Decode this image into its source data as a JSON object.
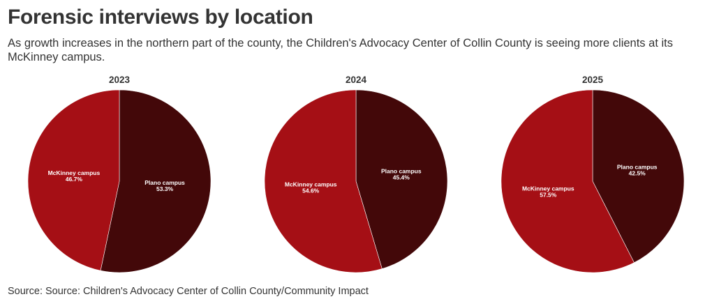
{
  "header": {
    "title": "Forensic interviews by location",
    "subtitle": "As growth increases in the northern part of the county, the Children's Advocacy Center of Collin County is seeing more clients at its McKinney campus."
  },
  "footer": {
    "source": "Source: Source: Children's Advocacy Center of Collin County/Community Impact"
  },
  "colors": {
    "plano": "#430809",
    "mckinney": "#a50f15"
  },
  "chart_data": [
    {
      "type": "pie",
      "title": "2023",
      "slices": [
        {
          "label": "Plano campus",
          "value": 53.3,
          "display": "53.3%",
          "color": "#430809"
        },
        {
          "label": "McKinney campus",
          "value": 46.7,
          "display": "46.7%",
          "color": "#a50f15"
        }
      ]
    },
    {
      "type": "pie",
      "title": "2024",
      "slices": [
        {
          "label": "Plano campus",
          "value": 45.4,
          "display": "45.4%",
          "color": "#430809"
        },
        {
          "label": "McKinney campus",
          "value": 54.6,
          "display": "54.6%",
          "color": "#a50f15"
        }
      ]
    },
    {
      "type": "pie",
      "title": "2025",
      "slices": [
        {
          "label": "Plano campus",
          "value": 42.5,
          "display": "42.5%",
          "color": "#430809"
        },
        {
          "label": "McKinney campus",
          "value": 57.5,
          "display": "57.5%",
          "color": "#a50f15"
        }
      ]
    }
  ]
}
